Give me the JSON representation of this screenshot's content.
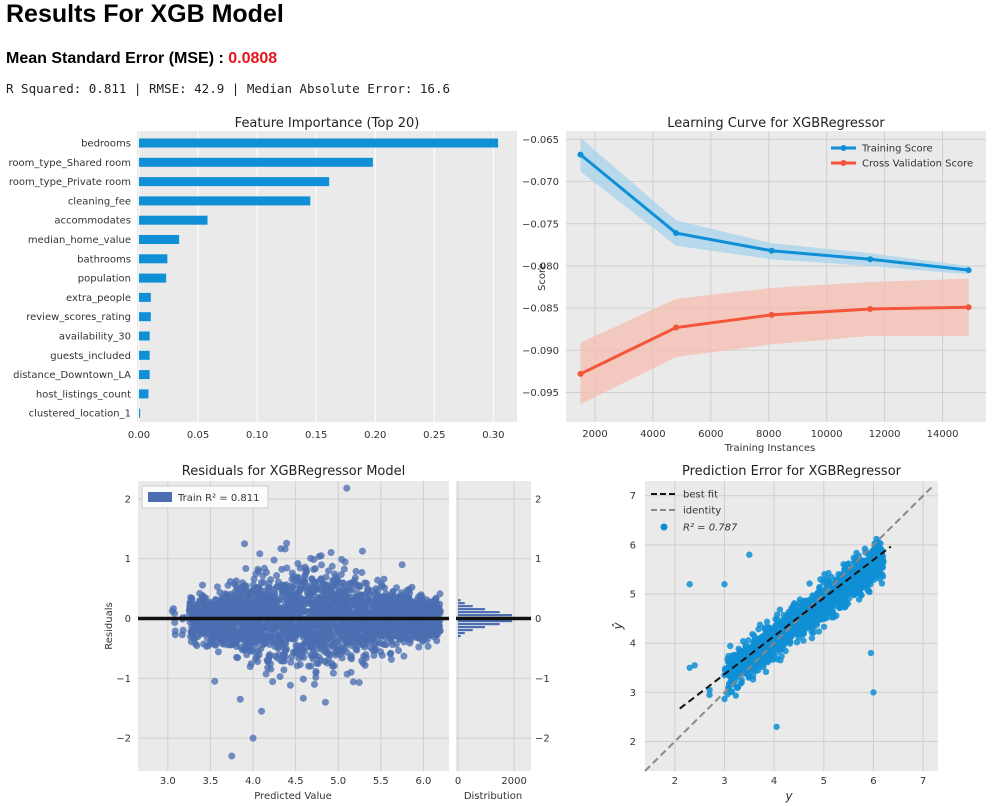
{
  "report": {
    "title": "Results For XGB Model",
    "mse_label": "Mean Standard Error (MSE) : ",
    "mse_value": "0.0808",
    "metrics_line": "R Squared: 0.811 | RMSE: 42.9 | Median Absolute Error: 16.6"
  },
  "colors": {
    "blue": "#0f8fd5",
    "red": "#f4553a",
    "navy": "#4a6eb1",
    "panel_bg": "#eaeaea",
    "mse_red": "#e8141b"
  },
  "chart_data": [
    {
      "type": "bar",
      "title": "Feature Importance (Top 20)",
      "orientation": "horizontal",
      "categories": [
        "bedrooms",
        "room_type_Shared room",
        "room_type_Private room",
        "cleaning_fee",
        "accommodates",
        "median_home_value",
        "bathrooms",
        "population",
        "extra_people",
        "review_scores_rating",
        "availability_30",
        "guests_included",
        "distance_Downtown_LA",
        "host_listings_count",
        "clustered_location_1"
      ],
      "values": [
        0.304,
        0.198,
        0.161,
        0.145,
        0.058,
        0.034,
        0.024,
        0.023,
        0.01,
        0.01,
        0.009,
        0.009,
        0.009,
        0.008,
        0.001
      ],
      "xlim": [
        0,
        0.32
      ],
      "xticks": [
        "0.00",
        "0.05",
        "0.10",
        "0.15",
        "0.20",
        "0.25",
        "0.30"
      ],
      "grid": true
    },
    {
      "type": "line",
      "title": "Learning Curve for XGBRegressor",
      "xlabel": "Training Instances",
      "ylabel": "Score",
      "xlim": [
        1000,
        15500
      ],
      "ylim": [
        -0.0985,
        -0.064
      ],
      "xticks": [
        "2000",
        "4000",
        "6000",
        "8000",
        "10000",
        "12000",
        "14000"
      ],
      "yticks": [
        "−0.065",
        "−0.070",
        "−0.075",
        "−0.080",
        "−0.085",
        "−0.090",
        "−0.095"
      ],
      "legend_position": "top-right",
      "series": [
        {
          "name": "Training Score",
          "x": [
            1500,
            4800,
            8100,
            11500,
            14900
          ],
          "values": [
            -0.0668,
            -0.0761,
            -0.0782,
            -0.0792,
            -0.0805
          ],
          "lower": [
            -0.0688,
            -0.0776,
            -0.0792,
            -0.08,
            -0.081
          ],
          "upper": [
            -0.0648,
            -0.0746,
            -0.0773,
            -0.0785,
            -0.08
          ]
        },
        {
          "name": "Cross Validation Score",
          "x": [
            1500,
            4800,
            8100,
            11500,
            14900
          ],
          "values": [
            -0.0928,
            -0.0873,
            -0.0858,
            -0.0851,
            -0.0849
          ],
          "lower": [
            -0.0964,
            -0.0908,
            -0.0893,
            -0.0883,
            -0.0883
          ],
          "upper": [
            -0.0891,
            -0.0839,
            -0.0826,
            -0.0819,
            -0.0815
          ]
        }
      ]
    },
    {
      "type": "scatter",
      "title": "Residuals for XGBRegressor Model",
      "xlabel": "Predicted Value",
      "ylabel": "Residuals",
      "xlim": [
        2.65,
        6.3
      ],
      "ylim": [
        -2.55,
        2.3
      ],
      "xticks": [
        "3.0",
        "3.5",
        "4.0",
        "4.5",
        "5.0",
        "5.5",
        "6.0"
      ],
      "yticks": [
        "2",
        "1",
        "0",
        "−1",
        "−2"
      ],
      "legend": "Train R² = 0.811",
      "side_histogram": {
        "xlabel": "Distribution",
        "xticks": [
          "0",
          "2000"
        ],
        "xlim": [
          0,
          2600
        ]
      }
    },
    {
      "type": "scatter",
      "title": "Prediction Error for XGBRegressor",
      "xlabel": "y",
      "ylabel": "ŷ",
      "xlim": [
        1.4,
        7.3
      ],
      "ylim": [
        1.4,
        7.3
      ],
      "xticks": [
        "2",
        "3",
        "4",
        "5",
        "6",
        "7"
      ],
      "yticks": [
        "7",
        "6",
        "5",
        "4",
        "3",
        "2"
      ],
      "legend": [
        "best fit",
        "identity",
        "R² = 0.787"
      ],
      "best_fit": {
        "slope": 0.776,
        "intercept": 1.04
      }
    }
  ]
}
